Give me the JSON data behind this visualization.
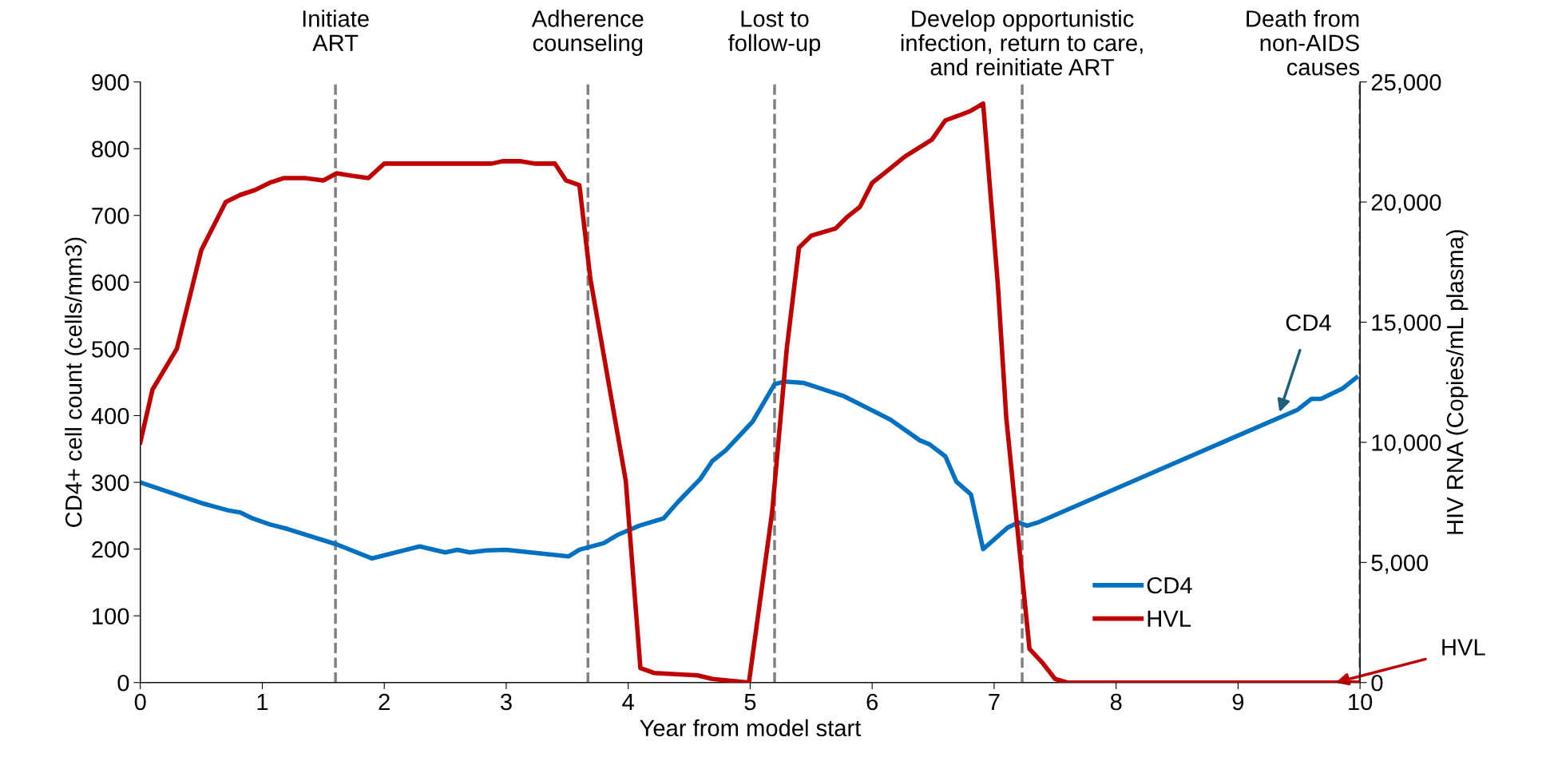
{
  "chart_data": {
    "type": "line",
    "xlabel": "Year from model start",
    "ylabel": "CD4+ cell count (cells/mm3)",
    "y2label": "HIV RNA (Copies/mL plasma)",
    "xlim": [
      0,
      10
    ],
    "xticks": [
      0,
      1,
      2,
      3,
      4,
      5,
      6,
      7,
      8,
      9,
      10
    ],
    "ylim": [
      0,
      900
    ],
    "yticks": [
      0,
      100,
      200,
      300,
      400,
      500,
      600,
      700,
      800,
      900
    ],
    "y2lim": [
      0,
      25000
    ],
    "y2ticks": [
      {
        "value": 0,
        "label": "0"
      },
      {
        "value": 5000,
        "label": "5,000"
      },
      {
        "value": 10000,
        "label": "10,000"
      },
      {
        "value": 15000,
        "label": "15,000"
      },
      {
        "value": 20000,
        "label": "20,000"
      },
      {
        "value": 25000,
        "label": "25,000"
      }
    ],
    "series": [
      {
        "name": "CD4",
        "color": "#0070c0",
        "x": [
          0,
          0.52,
          0.6,
          0.72,
          0.82,
          0.92,
          1.06,
          1.21,
          1.61,
          1.9,
          2.29,
          2.5,
          2.6,
          2.7,
          2.84,
          3.0,
          3.2,
          3.51,
          3.6,
          3.8,
          3.91,
          4.09,
          4.29,
          4.41,
          4.59,
          4.69,
          4.8,
          5.02,
          5.2,
          5.28,
          5.44,
          5.77,
          6.15,
          6.39,
          6.47,
          6.6,
          6.69,
          6.81,
          6.91,
          7.11,
          7.2,
          7.27,
          7.36,
          9.49,
          9.6,
          9.68,
          9.86,
          9.97
        ],
        "values": [
          300,
          268,
          264,
          258,
          255,
          246,
          237,
          230,
          207,
          186,
          204,
          195,
          199,
          195,
          198,
          199,
          195,
          189,
          199,
          209,
          221,
          235,
          246,
          271,
          305,
          332,
          348,
          391,
          447,
          451,
          449,
          429,
          394,
          363,
          357,
          339,
          301,
          282,
          200,
          232,
          240,
          235,
          240,
          409,
          425,
          425,
          441,
          457
        ]
      },
      {
        "name": "HVL",
        "color": "#c00000",
        "axis": "y2",
        "x": [
          0,
          0.1,
          0.3,
          0.5,
          0.7,
          0.82,
          0.94,
          1.06,
          1.18,
          1.35,
          1.5,
          1.61,
          1.73,
          1.87,
          2.0,
          2.11,
          2.48,
          2.64,
          2.88,
          2.97,
          3.12,
          3.24,
          3.4,
          3.49,
          3.6,
          3.69,
          3.98,
          4.1,
          4.21,
          4.57,
          4.69,
          4.99,
          5.18,
          5.3,
          5.4,
          5.5,
          5.7,
          5.8,
          5.9,
          6.0,
          6.1,
          6.27,
          6.49,
          6.6,
          6.71,
          6.81,
          6.91,
          7.03,
          7.1,
          7.29,
          7.4,
          7.5,
          7.6,
          10
        ],
        "values": [
          10000,
          12200,
          13900,
          18000,
          20000,
          20300,
          20500,
          20800,
          21000,
          21000,
          20900,
          21200,
          21100,
          21000,
          21600,
          21600,
          21600,
          21600,
          21600,
          21700,
          21700,
          21600,
          21600,
          20900,
          20700,
          16800,
          8400,
          600,
          400,
          300,
          150,
          0,
          7100,
          13900,
          18100,
          18600,
          18900,
          19400,
          19800,
          20800,
          21200,
          21900,
          22600,
          23400,
          23600,
          23800,
          24100,
          16600,
          11000,
          1400,
          800,
          150,
          0,
          0
        ]
      }
    ],
    "ref_lines": [
      {
        "axis": "x",
        "value": 1.6,
        "label": "Initiate\nART",
        "color": "#808080",
        "line_style": "dashed"
      },
      {
        "axis": "x",
        "value": 3.67,
        "label": "Adherence\ncounseling",
        "color": "#808080",
        "line_style": "dashed"
      },
      {
        "axis": "x",
        "value": 5.2,
        "label": "Lost to\nfollow-up",
        "color": "#808080",
        "line_style": "dashed"
      },
      {
        "axis": "x",
        "value": 7.23,
        "label": "Develop opportunistic\ninfection, return to care,\nand reinitiate ART",
        "color": "#808080",
        "line_style": "dashed"
      },
      {
        "axis": "x",
        "value": 10,
        "label": "Death from\nnon-AIDS\ncauses",
        "color": "#808080",
        "line_style": "dashed"
      }
    ],
    "annotations": [
      {
        "text": "CD4",
        "x": 9.34,
        "y": 405
      },
      {
        "text": "HVL",
        "x": 9.8,
        "y": 0
      }
    ],
    "legend": "bottom right",
    "grid": false,
    "marker": "none",
    "line_style": "solid"
  }
}
